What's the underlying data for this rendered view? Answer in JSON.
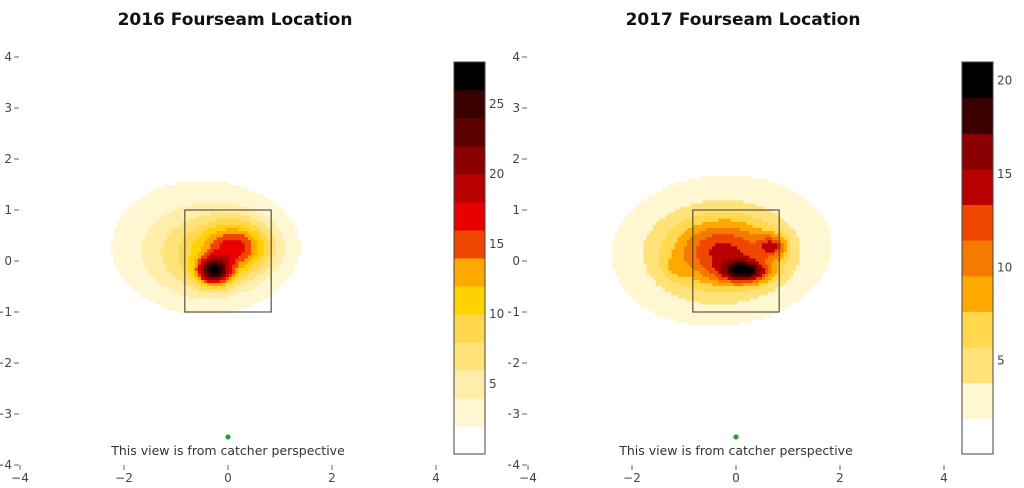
{
  "colors": {
    "background": "#ffffff",
    "zone_outline": "#333333",
    "home_plate_marker": "#2ca02c",
    "scale": [
      "#ffffff",
      "#fff7d1",
      "#ffeeaa",
      "#ffe27a",
      "#ffd84d",
      "#ffd200",
      "#ffa800",
      "#f47a00",
      "#ef4600",
      "#e80000",
      "#b80000",
      "#8a0000",
      "#5c0000",
      "#3a0000",
      "#000000"
    ]
  },
  "chart_data": [
    {
      "type": "heatmap",
      "subtype": "contour density",
      "title": "2016 Fourseam Location",
      "annotation": "This view is from catcher perspective",
      "xlim": [
        -4,
        4
      ],
      "ylim": [
        -4,
        4
      ],
      "x_ticks": [
        "−4",
        "−2",
        "0",
        "2",
        "4"
      ],
      "y_ticks": [
        "4",
        "3",
        "2",
        "1",
        "0",
        "−1",
        "−2",
        "−3",
        "−4"
      ],
      "x_tick_values": [
        -4,
        -2,
        0,
        2,
        4
      ],
      "y_tick_values": [
        4,
        3,
        2,
        1,
        0,
        -1,
        -2,
        -3,
        -4
      ],
      "strike_zone": {
        "x": [
          -0.83,
          0.83
        ],
        "y": [
          -1,
          1
        ]
      },
      "home_plate_marker": {
        "x": 0,
        "y": -3.45
      },
      "colorbar": {
        "min": 0,
        "max": 28,
        "ticks": [
          "5",
          "10",
          "15",
          "20",
          "25"
        ],
        "tick_values": [
          5,
          10,
          15,
          20,
          25
        ],
        "bins": 14
      },
      "peak": {
        "x": -0.27,
        "y": -0.2,
        "value": 28
      },
      "grid": false
    },
    {
      "type": "heatmap",
      "subtype": "contour density",
      "title": "2017 Fourseam Location",
      "annotation": "This view is from catcher perspective",
      "xlim": [
        -4,
        4
      ],
      "ylim": [
        -4,
        4
      ],
      "x_ticks": [
        "−4",
        "−2",
        "0",
        "2",
        "4"
      ],
      "y_ticks": [
        "4",
        "3",
        "2",
        "1",
        "0",
        "−1",
        "−2",
        "−3",
        "−4"
      ],
      "x_tick_values": [
        -4,
        -2,
        0,
        2,
        4
      ],
      "y_tick_values": [
        4,
        3,
        2,
        1,
        0,
        -1,
        -2,
        -3,
        -4
      ],
      "strike_zone": {
        "x": [
          -0.83,
          0.83
        ],
        "y": [
          -1,
          1
        ]
      },
      "home_plate_marker": {
        "x": 0,
        "y": -3.45
      },
      "colorbar": {
        "min": 0,
        "max": 21,
        "ticks": [
          "5",
          "10",
          "15",
          "20"
        ],
        "tick_values": [
          5,
          10,
          15,
          20
        ],
        "bins": 11
      },
      "peak": {
        "x": 0.18,
        "y": -0.2,
        "value": 21
      },
      "grid": false
    }
  ]
}
